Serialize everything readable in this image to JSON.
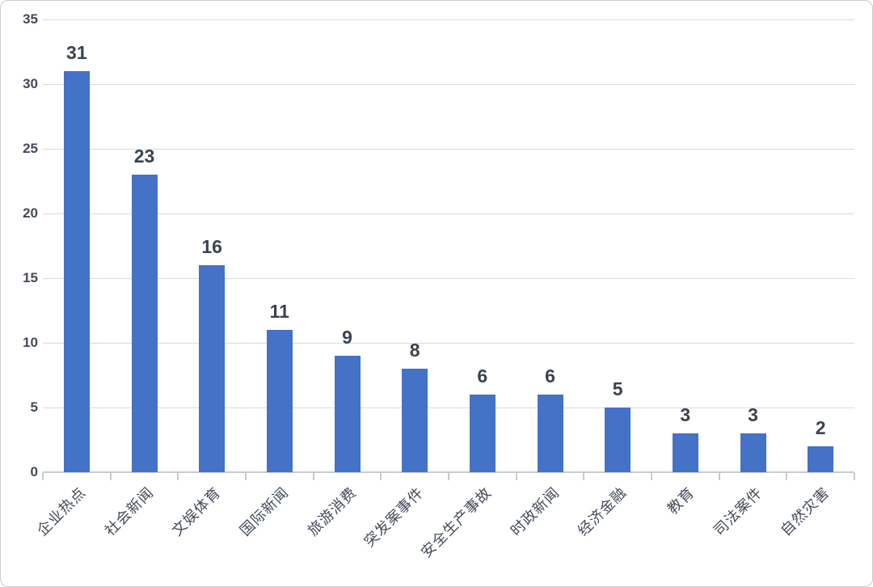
{
  "chart_data": {
    "type": "bar",
    "title": "",
    "xlabel": "",
    "ylabel": "",
    "categories": [
      "企业热点",
      "社会新闻",
      "文娱体育",
      "国际新闻",
      "旅游消费",
      "突发案事件",
      "安全生产事故",
      "时政新闻",
      "经济金融",
      "教育",
      "司法案件",
      "自然灾害"
    ],
    "values": [
      31,
      23,
      16,
      11,
      9,
      8,
      6,
      6,
      5,
      3,
      3,
      2
    ],
    "yticks": [
      0,
      5,
      10,
      15,
      20,
      25,
      30,
      35
    ],
    "ylim": [
      0,
      35
    ],
    "grid": true,
    "legend": false,
    "data_labels_shown": true,
    "colors": {
      "bar": "#4372C7",
      "data_label": "#3A4350",
      "axis_text": "#434B59",
      "gridline": "#DADADA",
      "axis_line": "#C6CBD2",
      "background": "#FFFFFF",
      "frame_border": "#CCCCCC"
    }
  }
}
